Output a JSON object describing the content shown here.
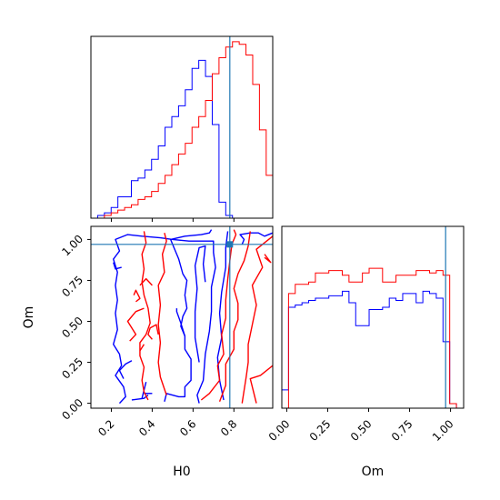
{
  "chart_data": {
    "type": "corner",
    "title": "",
    "colors": {
      "series_a": "#0000ff",
      "series_b": "#ff0000",
      "truth": "#1f77b4"
    },
    "parameters": [
      {
        "key": "H0",
        "label": "H0",
        "range": [
          0.1,
          0.99
        ],
        "ticks": [
          0.2,
          0.4,
          0.6,
          0.8
        ],
        "tick_labels": [
          "0.2",
          "0.4",
          "0.6",
          "0.8"
        ],
        "truth": 0.78
      },
      {
        "key": "Om",
        "label": "Om",
        "range": [
          -0.03,
          1.08
        ],
        "ticks": [
          0.0,
          0.25,
          0.5,
          0.75,
          1.0
        ],
        "tick_labels": [
          "0.00",
          "0.25",
          "0.50",
          "0.75",
          "1.00"
        ],
        "truth": 0.97
      }
    ],
    "truth_point": {
      "H0": 0.78,
      "Om": 0.97
    },
    "histogram_H0": {
      "bin_edges": [
        0.1,
        0.133,
        0.166,
        0.199,
        0.232,
        0.265,
        0.298,
        0.331,
        0.364,
        0.397,
        0.43,
        0.463,
        0.496,
        0.529,
        0.562,
        0.595,
        0.628,
        0.661,
        0.694,
        0.727,
        0.76,
        0.793,
        0.826,
        0.859,
        0.892,
        0.925,
        0.958,
        0.99
      ],
      "series": [
        {
          "name": "",
          "color": "#0000ff",
          "counts": [
            0,
            1,
            2,
            4,
            8,
            8,
            14,
            15,
            18,
            22,
            27,
            34,
            38,
            42,
            48,
            56,
            59,
            53,
            35,
            6,
            1,
            0,
            0,
            0,
            0,
            0,
            0
          ]
        },
        {
          "name": "",
          "color": "#ff0000",
          "counts": [
            0,
            0,
            1,
            2,
            3,
            4,
            5,
            7,
            8,
            10,
            13,
            16,
            20,
            24,
            28,
            34,
            38,
            44,
            54,
            60,
            64,
            66,
            65,
            61,
            50,
            33,
            16
          ]
        }
      ]
    },
    "histogram_Om": {
      "bin_edges": [
        -0.03,
        0.011,
        0.052,
        0.093,
        0.134,
        0.175,
        0.216,
        0.257,
        0.298,
        0.339,
        0.38,
        0.421,
        0.462,
        0.503,
        0.544,
        0.585,
        0.626,
        0.667,
        0.708,
        0.749,
        0.79,
        0.831,
        0.872,
        0.913,
        0.954,
        0.995,
        1.036,
        1.08
      ],
      "series": [
        {
          "name": "",
          "color": "#0000ff",
          "counts": [
            8,
            44,
            45,
            46,
            47,
            48,
            48,
            49,
            49,
            51,
            46,
            36,
            36,
            43,
            43,
            44,
            48,
            47,
            50,
            50,
            46,
            51,
            50,
            48,
            29,
            2,
            0
          ]
        },
        {
          "name": "",
          "color": "#ff0000",
          "counts": [
            0,
            50,
            54,
            54,
            55,
            59,
            59,
            60,
            60,
            58,
            55,
            55,
            59,
            61,
            61,
            55,
            55,
            58,
            58,
            58,
            60,
            60,
            59,
            60,
            58,
            2,
            0
          ]
        }
      ]
    },
    "contours_2d": {
      "series": [
        {
          "name": "",
          "color": "#0000ff",
          "paths": [
            [
              [
                0.46,
                0.01
              ],
              [
                0.47,
                0.06
              ],
              [
                0.53,
                0.04
              ],
              [
                0.56,
                0.04
              ],
              [
                0.56,
                0.1
              ],
              [
                0.59,
                0.14
              ],
              [
                0.59,
                0.27
              ],
              [
                0.56,
                0.33
              ],
              [
                0.56,
                0.41
              ],
              [
                0.54,
                0.47
              ],
              [
                0.55,
                0.53
              ],
              [
                0.57,
                0.58
              ],
              [
                0.56,
                0.66
              ],
              [
                0.57,
                0.75
              ],
              [
                0.55,
                0.79
              ],
              [
                0.53,
                0.88
              ],
              [
                0.51,
                0.94
              ],
              [
                0.49,
                1.0
              ],
              [
                0.56,
                1.02
              ],
              [
                0.64,
                1.03
              ],
              [
                0.68,
                1.04
              ],
              [
                0.69,
                1.06
              ]
            ],
            [
              [
                0.24,
                0.0
              ],
              [
                0.27,
                0.04
              ],
              [
                0.26,
                0.1
              ],
              [
                0.22,
                0.17
              ],
              [
                0.25,
                0.23
              ],
              [
                0.24,
                0.3
              ],
              [
                0.21,
                0.36
              ],
              [
                0.23,
                0.45
              ],
              [
                0.22,
                0.55
              ],
              [
                0.23,
                0.63
              ],
              [
                0.22,
                0.72
              ],
              [
                0.23,
                0.8
              ],
              [
                0.21,
                0.88
              ],
              [
                0.24,
                0.93
              ],
              [
                0.22,
                1.0
              ],
              [
                0.28,
                1.03
              ],
              [
                0.35,
                1.02
              ],
              [
                0.44,
                1.01
              ],
              [
                0.5,
                1.0
              ],
              [
                0.58,
                0.99
              ],
              [
                0.65,
                0.99
              ],
              [
                0.7,
                0.99
              ],
              [
                0.7,
                0.92
              ],
              [
                0.71,
                0.83
              ],
              [
                0.69,
                0.71
              ],
              [
                0.69,
                0.56
              ],
              [
                0.68,
                0.44
              ],
              [
                0.66,
                0.3
              ],
              [
                0.65,
                0.14
              ],
              [
                0.62,
                0.05
              ],
              [
                0.63,
                0.0
              ]
            ],
            [
              [
                0.63,
                0.25
              ],
              [
                0.61,
                0.4
              ],
              [
                0.61,
                0.56
              ],
              [
                0.62,
                0.7
              ],
              [
                0.61,
                0.84
              ],
              [
                0.63,
                0.95
              ],
              [
                0.66,
                0.96
              ],
              [
                0.65,
                0.85
              ],
              [
                0.66,
                0.74
              ]
            ],
            [
              [
                0.75,
                0.02
              ],
              [
                0.73,
                0.14
              ],
              [
                0.72,
                0.28
              ],
              [
                0.74,
                0.4
              ],
              [
                0.73,
                0.55
              ],
              [
                0.74,
                0.68
              ],
              [
                0.76,
                0.83
              ],
              [
                0.76,
                0.95
              ],
              [
                0.77,
                1.05
              ]
            ],
            [
              [
                0.84,
                0.97
              ],
              [
                0.85,
                1.0
              ],
              [
                0.83,
                1.03
              ],
              [
                0.88,
                1.04
              ],
              [
                0.92,
                1.04
              ],
              [
                0.95,
                1.02
              ],
              [
                0.99,
                1.04
              ]
            ],
            [
              [
                0.3,
                0.26
              ],
              [
                0.27,
                0.24
              ],
              [
                0.24,
                0.2
              ],
              [
                0.26,
                0.15
              ]
            ],
            [
              [
                0.21,
                0.86
              ],
              [
                0.22,
                0.82
              ],
              [
                0.25,
                0.83
              ]
            ],
            [
              [
                0.56,
                0.41
              ],
              [
                0.54,
                0.49
              ],
              [
                0.52,
                0.56
              ],
              [
                0.52,
                0.58
              ]
            ],
            [
              [
                0.37,
                0.13
              ],
              [
                0.36,
                0.08
              ],
              [
                0.35,
                0.03
              ]
            ],
            [
              [
                0.38,
                0.05
              ],
              [
                0.36,
                0.03
              ],
              [
                0.3,
                0.02
              ]
            ],
            [
              [
                0.4,
                0.06
              ],
              [
                0.36,
                0.06
              ]
            ]
          ]
        },
        {
          "name": "",
          "color": "#ff0000",
          "paths": [
            [
              [
                0.38,
                0.02
              ],
              [
                0.36,
                0.07
              ],
              [
                0.35,
                0.14
              ],
              [
                0.36,
                0.22
              ],
              [
                0.34,
                0.29
              ],
              [
                0.34,
                0.37
              ],
              [
                0.37,
                0.42
              ],
              [
                0.39,
                0.49
              ],
              [
                0.38,
                0.58
              ],
              [
                0.36,
                0.66
              ],
              [
                0.35,
                0.74
              ],
              [
                0.36,
                0.82
              ],
              [
                0.35,
                0.91
              ],
              [
                0.37,
                0.98
              ],
              [
                0.36,
                1.05
              ]
            ],
            [
              [
                0.47,
                0.05
              ],
              [
                0.44,
                0.16
              ],
              [
                0.43,
                0.25
              ],
              [
                0.44,
                0.37
              ],
              [
                0.43,
                0.48
              ],
              [
                0.44,
                0.6
              ],
              [
                0.43,
                0.72
              ],
              [
                0.46,
                0.8
              ],
              [
                0.45,
                0.91
              ],
              [
                0.47,
                0.99
              ],
              [
                0.46,
                1.04
              ]
            ],
            [
              [
                0.64,
                0.02
              ],
              [
                0.68,
                0.06
              ],
              [
                0.73,
                0.14
              ],
              [
                0.72,
                0.23
              ],
              [
                0.75,
                0.3
              ],
              [
                0.74,
                0.42
              ],
              [
                0.76,
                0.52
              ],
              [
                0.76,
                0.63
              ],
              [
                0.77,
                0.76
              ],
              [
                0.78,
                0.87
              ],
              [
                0.79,
                0.97
              ],
              [
                0.81,
                1.03
              ],
              [
                0.8,
                1.06
              ]
            ],
            [
              [
                0.73,
                0.01
              ],
              [
                0.76,
                0.11
              ],
              [
                0.76,
                0.24
              ],
              [
                0.8,
                0.33
              ],
              [
                0.8,
                0.44
              ],
              [
                0.82,
                0.51
              ],
              [
                0.82,
                0.61
              ],
              [
                0.8,
                0.7
              ],
              [
                0.82,
                0.79
              ],
              [
                0.85,
                0.87
              ],
              [
                0.87,
                0.96
              ],
              [
                0.88,
                1.05
              ]
            ],
            [
              [
                0.84,
                0.0
              ],
              [
                0.85,
                0.08
              ],
              [
                0.86,
                0.16
              ],
              [
                0.87,
                0.25
              ],
              [
                0.87,
                0.36
              ],
              [
                0.89,
                0.48
              ],
              [
                0.91,
                0.6
              ],
              [
                0.89,
                0.72
              ],
              [
                0.94,
                0.83
              ],
              [
                0.91,
                0.94
              ],
              [
                0.99,
                1.02
              ]
            ],
            [
              [
                0.91,
                0.0
              ],
              [
                0.89,
                0.1
              ],
              [
                0.88,
                0.15
              ],
              [
                0.93,
                0.17
              ],
              [
                0.99,
                0.23
              ]
            ],
            [
              [
                0.95,
                0.89
              ],
              [
                0.98,
                0.86
              ],
              [
                0.95,
                0.91
              ]
            ],
            [
              [
                0.4,
                0.39
              ],
              [
                0.38,
                0.42
              ],
              [
                0.39,
                0.46
              ],
              [
                0.42,
                0.48
              ],
              [
                0.43,
                0.42
              ]
            ],
            [
              [
                0.29,
                0.38
              ],
              [
                0.32,
                0.42
              ],
              [
                0.28,
                0.5
              ],
              [
                0.32,
                0.56
              ],
              [
                0.36,
                0.58
              ]
            ],
            [
              [
                0.32,
                0.62
              ],
              [
                0.34,
                0.64
              ],
              [
                0.32,
                0.69
              ],
              [
                0.31,
                0.66
              ]
            ],
            [
              [
                0.34,
                0.72
              ],
              [
                0.37,
                0.76
              ],
              [
                0.4,
                0.72
              ]
            ],
            [
              [
                0.34,
                0.32
              ],
              [
                0.36,
                0.36
              ]
            ]
          ]
        }
      ]
    }
  }
}
